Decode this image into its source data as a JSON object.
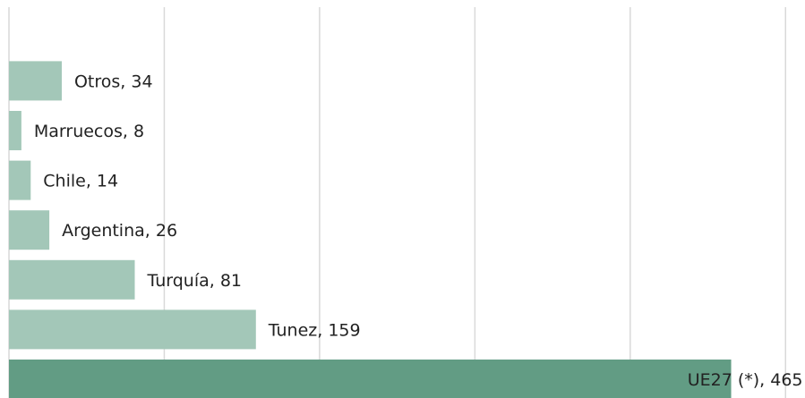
{
  "chart_data": {
    "type": "bar",
    "orientation": "horizontal",
    "categories": [
      "UE27 (*)",
      "Tunez",
      "Turquía",
      "Argentina",
      "Chile",
      "Marruecos",
      "Otros"
    ],
    "values": [
      465,
      159,
      81,
      26,
      14,
      8,
      34
    ],
    "data_labels": [
      "UE27 (*), 465",
      "Tunez, 159",
      "Turquía, 81",
      "Argentina, 26",
      "Chile,  14",
      "Marruecos, 8",
      "Otros, 34"
    ],
    "xlim": [
      0,
      500
    ],
    "grid": true,
    "colors": {
      "bar": "#a3c7b8",
      "highlight_bar": "#629c84",
      "grid": "#d9d9d9",
      "text": "#222222"
    }
  }
}
